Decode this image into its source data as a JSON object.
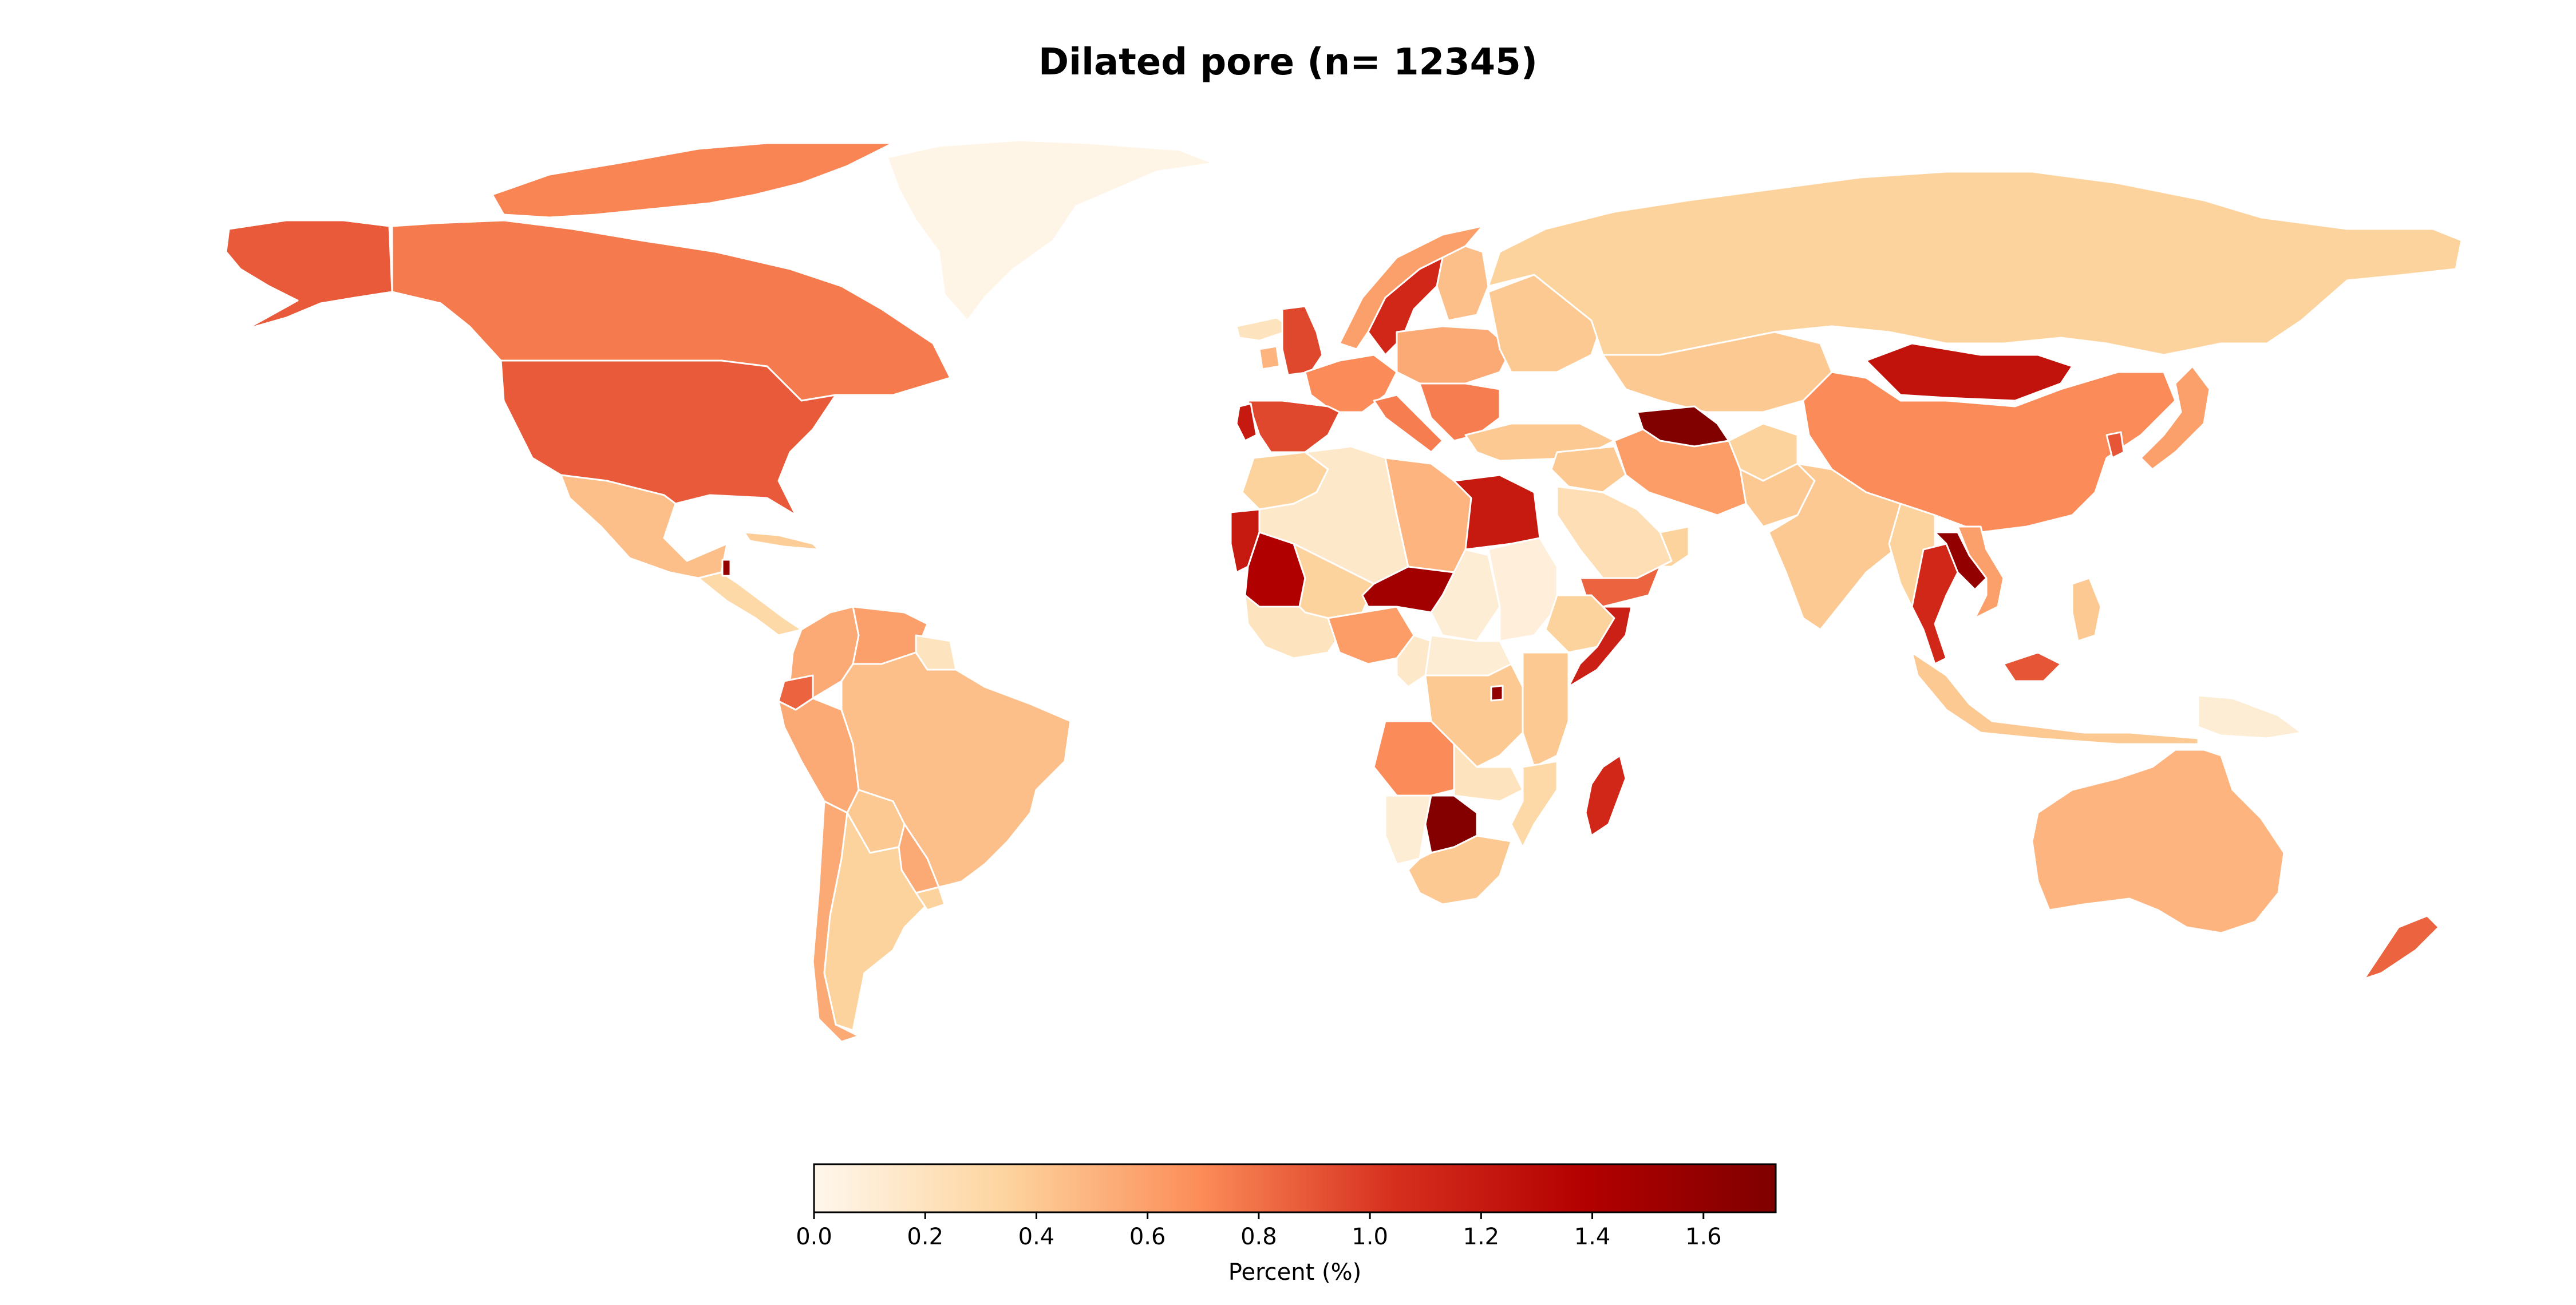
{
  "title": "Dilated pore (n= 12345)",
  "colorbar": {
    "label": "Percent (%)",
    "min": 0.0,
    "max": 1.73,
    "ticks": [
      "0.0",
      "0.2",
      "0.4",
      "0.6",
      "0.8",
      "1.0",
      "1.2",
      "1.4",
      "1.6"
    ],
    "colormap": [
      "#fff5eb",
      "#fee6ce",
      "#fdd0a2",
      "#fdae6b",
      "#fd8d3c",
      "#f16913",
      "#d94801",
      "#a63603",
      "#7f2704"
    ]
  },
  "colormap_display": [
    "#fff7ec",
    "#fdd49e",
    "#fc8d59",
    "#d7301f",
    "#b30000",
    "#7f0000"
  ],
  "regions": [
    {
      "name": "Greenland",
      "value": 0.02
    },
    {
      "name": "Alaska",
      "value": 0.88
    },
    {
      "name": "Canada",
      "value": 0.76
    },
    {
      "name": "Canadian Arctic Islands",
      "value": 0.72
    },
    {
      "name": "United States",
      "value": 0.88
    },
    {
      "name": "Mexico",
      "value": 0.45
    },
    {
      "name": "Central America",
      "value": 0.3
    },
    {
      "name": "Cuba",
      "value": 0.38
    },
    {
      "name": "Haiti",
      "value": 1.6
    },
    {
      "name": "Colombia",
      "value": 0.55
    },
    {
      "name": "Venezuela",
      "value": 0.6
    },
    {
      "name": "Guyana",
      "value": 0.2
    },
    {
      "name": "Ecuador",
      "value": 0.85
    },
    {
      "name": "Peru",
      "value": 0.55
    },
    {
      "name": "Brazil",
      "value": 0.45
    },
    {
      "name": "Bolivia",
      "value": 0.4
    },
    {
      "name": "Paraguay",
      "value": 0.55
    },
    {
      "name": "Chile",
      "value": 0.55
    },
    {
      "name": "Argentina",
      "value": 0.35
    },
    {
      "name": "Uruguay",
      "value": 0.35
    },
    {
      "name": "Iceland",
      "value": 0.2
    },
    {
      "name": "United Kingdom",
      "value": 0.95
    },
    {
      "name": "Ireland",
      "value": 0.5
    },
    {
      "name": "Norway",
      "value": 0.6
    },
    {
      "name": "Sweden",
      "value": 1.1
    },
    {
      "name": "Finland",
      "value": 0.45
    },
    {
      "name": "Western Europe",
      "value": 0.7
    },
    {
      "name": "Central Europe",
      "value": 0.55
    },
    {
      "name": "Eastern Europe",
      "value": 0.4
    },
    {
      "name": "Spain",
      "value": 0.95
    },
    {
      "name": "Portugal",
      "value": 1.2
    },
    {
      "name": "Italy",
      "value": 0.75
    },
    {
      "name": "Balkans",
      "value": 0.75
    },
    {
      "name": "Turkey",
      "value": 0.4
    },
    {
      "name": "Russia",
      "value": 0.35
    },
    {
      "name": "Kazakhstan",
      "value": 0.4
    },
    {
      "name": "Morocco",
      "value": 0.35
    },
    {
      "name": "Algeria",
      "value": 0.15
    },
    {
      "name": "Libya",
      "value": 0.5
    },
    {
      "name": "Egypt",
      "value": 1.2
    },
    {
      "name": "Mauritania",
      "value": 1.4
    },
    {
      "name": "Western Sahara",
      "value": 1.2
    },
    {
      "name": "Mali",
      "value": 0.35
    },
    {
      "name": "Niger",
      "value": 1.5
    },
    {
      "name": "Chad",
      "value": 0.1
    },
    {
      "name": "Sudan",
      "value": 0.08
    },
    {
      "name": "Ethiopia",
      "value": 0.35
    },
    {
      "name": "Somalia",
      "value": 1.15
    },
    {
      "name": "West Africa",
      "value": 0.2
    },
    {
      "name": "Nigeria",
      "value": 0.62
    },
    {
      "name": "Cameroon",
      "value": 0.15
    },
    {
      "name": "Central Africa",
      "value": 0.1
    },
    {
      "name": "DR Congo",
      "value": 0.4
    },
    {
      "name": "East Africa",
      "value": 0.4
    },
    {
      "name": "Rwanda",
      "value": 1.6
    },
    {
      "name": "Angola",
      "value": 0.7
    },
    {
      "name": "Zambia",
      "value": 0.2
    },
    {
      "name": "Mozambique",
      "value": 0.3
    },
    {
      "name": "Namibia",
      "value": 0.1
    },
    {
      "name": "Botswana",
      "value": 1.7
    },
    {
      "name": "South Africa",
      "value": 0.4
    },
    {
      "name": "Madagascar",
      "value": 1.1
    },
    {
      "name": "Saudi Arabia",
      "value": 0.25
    },
    {
      "name": "Yemen",
      "value": 0.85
    },
    {
      "name": "Oman",
      "value": 0.35
    },
    {
      "name": "Iran",
      "value": 0.62
    },
    {
      "name": "Iraq",
      "value": 0.4
    },
    {
      "name": "Turkmenistan",
      "value": 1.72
    },
    {
      "name": "Afghanistan",
      "value": 0.35
    },
    {
      "name": "Pakistan",
      "value": 0.4
    },
    {
      "name": "India",
      "value": 0.4
    },
    {
      "name": "China",
      "value": 0.7
    },
    {
      "name": "Mongolia",
      "value": 1.25
    },
    {
      "name": "Korea",
      "value": 0.9
    },
    {
      "name": "Japan",
      "value": 0.6
    },
    {
      "name": "Myanmar",
      "value": 0.35
    },
    {
      "name": "Thailand",
      "value": 1.1
    },
    {
      "name": "Laos",
      "value": 1.6
    },
    {
      "name": "Vietnam",
      "value": 0.6
    },
    {
      "name": "Malaysia",
      "value": 0.9
    },
    {
      "name": "Indonesia",
      "value": 0.4
    },
    {
      "name": "Philippines",
      "value": 0.4
    },
    {
      "name": "Papua New Guinea",
      "value": 0.1
    },
    {
      "name": "Australia",
      "value": 0.5
    },
    {
      "name": "New Zealand",
      "value": 0.85
    }
  ]
}
